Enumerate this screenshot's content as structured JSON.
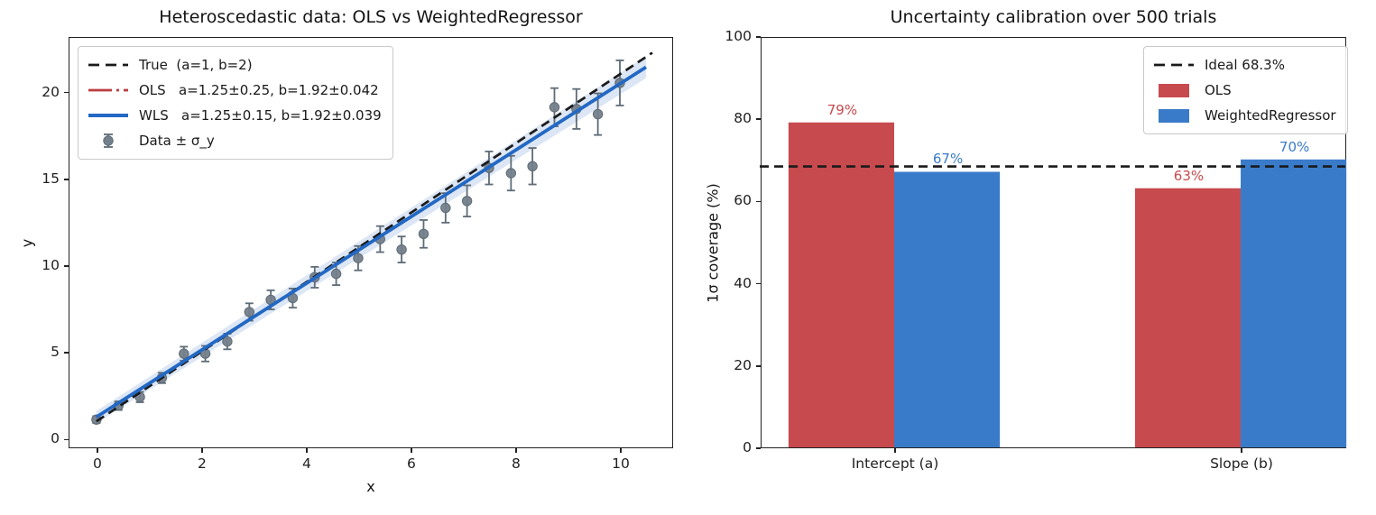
{
  "figure_background": "#ffffff",
  "colors": {
    "ols_red": "#c74a4e",
    "ols_line_red": "#bb3c40",
    "wls_blue": "#3a7bc9",
    "wls_line_blue": "#2268c4",
    "band_blue": "#c9d9ee",
    "marker_gray": "#74808b",
    "marker_edge_gray": "#5e6c77",
    "true_line_black": "#1a1a1a"
  },
  "chart_data": [
    {
      "type": "scatter",
      "title": "Heteroscedastic data: OLS vs WeightedRegressor",
      "xlabel": "x",
      "ylabel": "y",
      "xlim": [
        -0.55,
        11.0
      ],
      "ylim": [
        -0.5,
        23.2
      ],
      "xticks": [
        0,
        2,
        4,
        6,
        8,
        10
      ],
      "yticks": [
        0,
        5,
        10,
        15,
        20
      ],
      "grid": false,
      "legend_position": "upper-left",
      "points": {
        "x": [
          0,
          0.42,
          0.83,
          1.25,
          1.67,
          2.08,
          2.5,
          2.92,
          3.33,
          3.75,
          4.17,
          4.58,
          5.0,
          5.42,
          5.83,
          6.25,
          6.67,
          7.08,
          7.5,
          7.92,
          8.33,
          8.75,
          9.17,
          9.58,
          10.0
        ],
        "y": [
          1.1,
          1.9,
          2.4,
          3.5,
          4.9,
          4.9,
          5.6,
          7.3,
          8.0,
          8.1,
          9.3,
          9.5,
          10.4,
          11.5,
          10.9,
          11.8,
          13.3,
          13.7,
          15.6,
          15.3,
          15.7,
          19.1,
          19.0,
          18.7,
          20.5
        ],
        "sigma": [
          0.2,
          0.25,
          0.3,
          0.3,
          0.4,
          0.45,
          0.45,
          0.5,
          0.55,
          0.55,
          0.6,
          0.65,
          0.7,
          0.75,
          0.75,
          0.8,
          0.85,
          0.9,
          0.95,
          1.0,
          1.05,
          1.1,
          1.15,
          1.2,
          1.3
        ]
      },
      "lines": {
        "true": {
          "label": "True  (a=1, b=2)",
          "a": 1,
          "b": 2,
          "x_range": [
            0,
            10.62
          ],
          "style": "dashed"
        },
        "ols": {
          "label": "OLS   a=1.25±0.25, b=1.92±0.042",
          "a": 1.25,
          "b": 1.92,
          "x_range": [
            0,
            10.5
          ],
          "style": "dashdot"
        },
        "wls": {
          "label": "WLS   a=1.25±0.15, b=1.92±0.039",
          "a": 1.25,
          "b": 1.92,
          "x_range": [
            0,
            10.5
          ],
          "style": "solid"
        }
      },
      "data_label": "Data ± σ_y",
      "band": {
        "half_width_at_0": 0.35,
        "half_width_at_10": 0.62
      }
    },
    {
      "type": "bar",
      "title": "Uncertainty calibration over 500 trials",
      "ylabel": "1σ coverage (%)",
      "categories": [
        "Intercept (a)",
        "Slope (b)"
      ],
      "series": [
        {
          "name": "OLS",
          "values": [
            79,
            63
          ],
          "labels": [
            "79%",
            "63%"
          ]
        },
        {
          "name": "WeightedRegressor",
          "values": [
            67,
            70
          ],
          "labels": [
            "67%",
            "70%"
          ]
        }
      ],
      "ideal": {
        "value": 68.3,
        "label": "Ideal 68.3%"
      },
      "yticks": [
        0,
        20,
        40,
        60,
        80,
        100
      ],
      "ylim": [
        0,
        100
      ],
      "grid": false,
      "legend_position": "upper-right"
    }
  ]
}
